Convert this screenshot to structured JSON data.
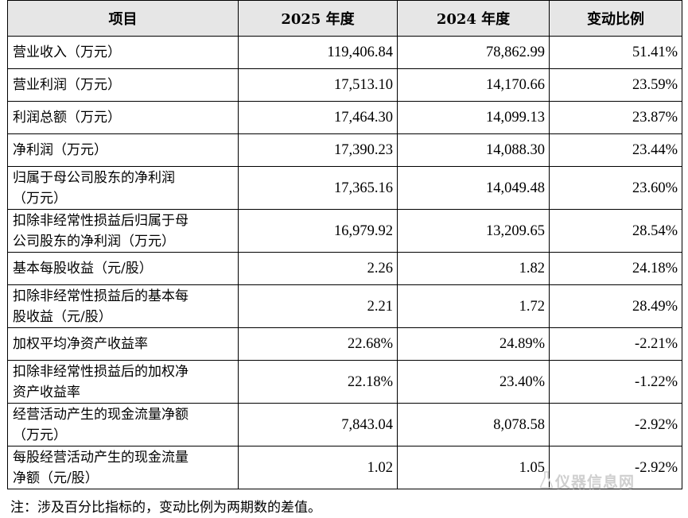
{
  "header": {
    "item": "项目",
    "y2025": "2025 年度",
    "y2024": "2024 年度",
    "change": "变动比例"
  },
  "rows": [
    {
      "item": [
        "营业收入（万元）"
      ],
      "y2025": "119,406.84",
      "y2024": "78,862.99",
      "change": "51.41%"
    },
    {
      "item": [
        "营业利润（万元）"
      ],
      "y2025": "17,513.10",
      "y2024": "14,170.66",
      "change": "23.59%"
    },
    {
      "item": [
        "利润总额（万元）"
      ],
      "y2025": "17,464.30",
      "y2024": "14,099.13",
      "change": "23.87%"
    },
    {
      "item": [
        "净利润（万元）"
      ],
      "y2025": "17,390.23",
      "y2024": "14,088.30",
      "change": "23.44%"
    },
    {
      "item": [
        "归属于母公司股东的净利润",
        "（万元）"
      ],
      "y2025": "17,365.16",
      "y2024": "14,049.48",
      "change": "23.60%"
    },
    {
      "item": [
        "扣除非经常性损益后归属于母",
        "公司股东的净利润（万元）"
      ],
      "y2025": "16,979.92",
      "y2024": "13,209.65",
      "change": "28.54%"
    },
    {
      "item": [
        "基本每股收益（元/股）"
      ],
      "y2025": "2.26",
      "y2024": "1.82",
      "change": "24.18%"
    },
    {
      "item": [
        "扣除非经常性损益后的基本每",
        "股收益（元/股）"
      ],
      "y2025": "2.21",
      "y2024": "1.72",
      "change": "28.49%"
    },
    {
      "item": [
        "加权平均净资产收益率"
      ],
      "y2025": "22.68%",
      "y2024": "24.89%",
      "change": "-2.21%"
    },
    {
      "item": [
        "扣除非经常性损益后的加权净",
        "资产收益率"
      ],
      "y2025": "22.18%",
      "y2024": "23.40%",
      "change": "-1.22%"
    },
    {
      "item": [
        "经营活动产生的现金流量净额",
        "（万元）"
      ],
      "y2025": "7,843.04",
      "y2024": "8,078.58",
      "change": "-2.92%"
    },
    {
      "item": [
        "每股经营活动产生的现金流量",
        "净额（元/股）"
      ],
      "y2025": "1.02",
      "y2024": "1.05",
      "change": "-2.92%"
    }
  ],
  "note": "注：涉及百分比指标的，变动比例为两期数的差值。",
  "watermark": "仪器信息网"
}
